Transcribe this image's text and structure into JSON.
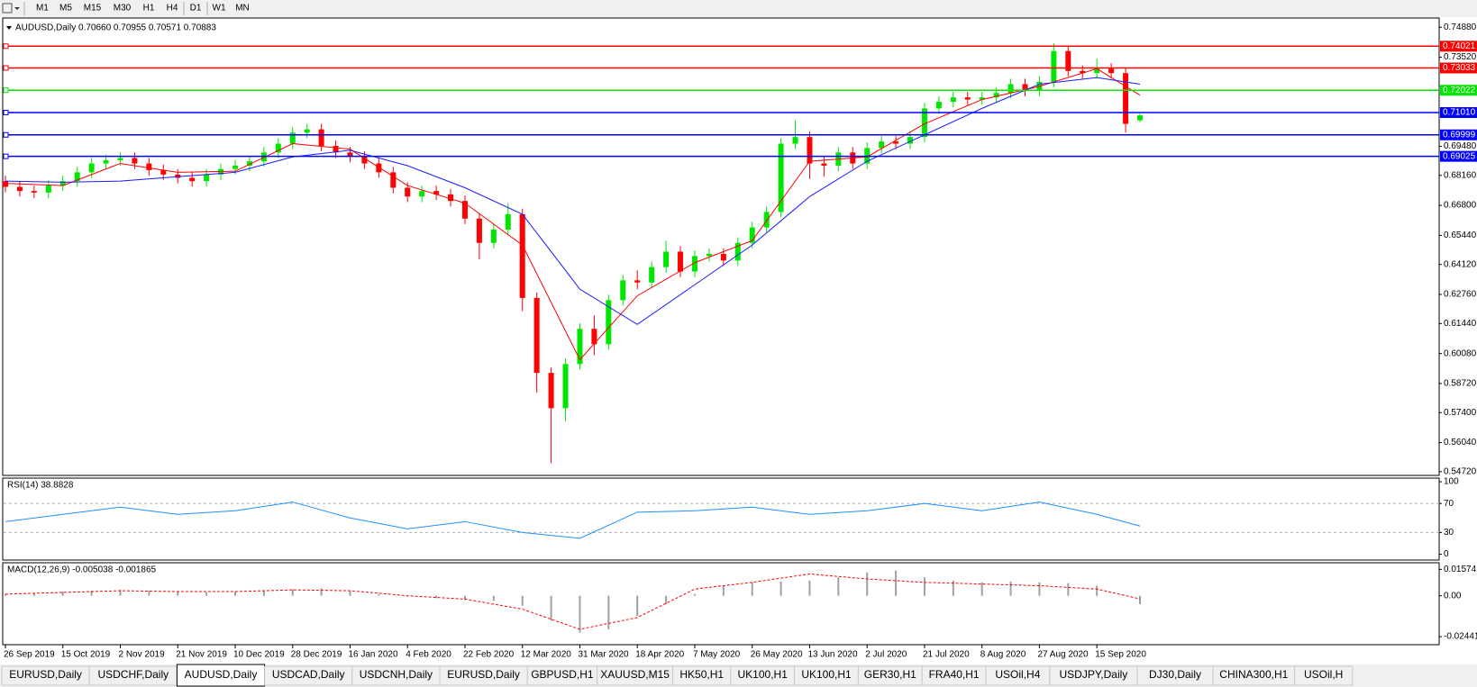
{
  "toolbar": {
    "timeframes": [
      "M1",
      "M5",
      "M15",
      "M30",
      "H1",
      "H4",
      "D1",
      "W1",
      "MN"
    ]
  },
  "chart_data": [
    {
      "type": "candlestick",
      "title": "AUDUSD,Daily  0.70660 0.70955 0.70571 0.70883",
      "up_color": "#00e600",
      "down_color": "#ff0000",
      "ylim": [
        0.5455,
        0.753
      ],
      "yticks": [
        {
          "value": 0.7488,
          "label": "0.74880"
        },
        {
          "value": 0.7352,
          "label": "0.73520"
        },
        {
          "value": 0.6948,
          "label": "0.69480"
        },
        {
          "value": 0.6816,
          "label": "0.68160"
        },
        {
          "value": 0.668,
          "label": "0.66800"
        },
        {
          "value": 0.6544,
          "label": "0.65440"
        },
        {
          "value": 0.6412,
          "label": "0.64120"
        },
        {
          "value": 0.6276,
          "label": "0.62760"
        },
        {
          "value": 0.6144,
          "label": "0.61440"
        },
        {
          "value": 0.6008,
          "label": "0.60080"
        },
        {
          "value": 0.5872,
          "label": "0.58720"
        },
        {
          "value": 0.574,
          "label": "0.57400"
        },
        {
          "value": 0.5604,
          "label": "0.56040"
        },
        {
          "value": 0.5472,
          "label": "0.54720"
        }
      ],
      "xticks": [
        {
          "value": 0,
          "label": "26 Sep 2019"
        },
        {
          "value": 4,
          "label": "15 Oct 2019"
        },
        {
          "value": 8,
          "label": "2 Nov 2019"
        },
        {
          "value": 12,
          "label": "21 Nov 2019"
        },
        {
          "value": 16,
          "label": "10 Dec 2019"
        },
        {
          "value": 20,
          "label": "28 Dec 2019"
        },
        {
          "value": 24,
          "label": "16 Jan 2020"
        },
        {
          "value": 28,
          "label": "4 Feb 2020"
        },
        {
          "value": 32,
          "label": "22 Feb 2020"
        },
        {
          "value": 36,
          "label": "12 Mar 2020"
        },
        {
          "value": 40,
          "label": "31 Mar 2020"
        },
        {
          "value": 44,
          "label": "18 Apr 2020"
        },
        {
          "value": 48,
          "label": "7 May 2020"
        },
        {
          "value": 52,
          "label": "26 May 2020"
        },
        {
          "value": 56,
          "label": "13 Jun 2020"
        },
        {
          "value": 60,
          "label": "2 Jul 2020"
        },
        {
          "value": 64,
          "label": "21 Jul 2020"
        },
        {
          "value": 68,
          "label": "8 Aug 2020"
        },
        {
          "value": 72,
          "label": "27 Aug 2020"
        },
        {
          "value": 76,
          "label": "15 Sep 2020"
        }
      ],
      "levels": [
        {
          "price": 0.74021,
          "color": "#ff0000"
        },
        {
          "price": 0.73033,
          "color": "#ff0000"
        },
        {
          "price": 0.72022,
          "color": "#00e600"
        },
        {
          "price": {
            "value": 0.7101,
            "label": "0.71010"
          },
          "color": "#0000ff"
        },
        {
          "price": 0.69999,
          "color": "#0000ff"
        },
        {
          "price": 0.69025,
          "color": "#0000ff"
        }
      ],
      "open": [
        0.679,
        0.6764,
        0.6745,
        0.6738,
        0.677,
        0.679,
        0.683,
        0.687,
        0.6885,
        0.6895,
        0.687,
        0.684,
        0.682,
        0.6805,
        0.679,
        0.682,
        0.6845,
        0.686,
        0.688,
        0.692,
        0.696,
        0.701,
        0.7025,
        0.695,
        0.692,
        0.69,
        0.687,
        0.683,
        0.676,
        0.672,
        0.6745,
        0.673,
        0.67,
        0.662,
        0.651,
        0.657,
        0.664,
        0.626,
        0.592,
        0.576,
        0.596,
        0.612,
        0.605,
        0.625,
        0.634,
        0.633,
        0.64,
        0.647,
        0.638,
        0.645,
        0.646,
        0.643,
        0.651,
        0.658,
        0.665,
        0.696,
        0.699,
        0.687,
        0.686,
        0.692,
        0.687,
        0.694,
        0.697,
        0.696,
        0.699,
        0.712,
        0.715,
        0.717,
        0.716,
        0.717,
        0.719,
        0.723,
        0.72,
        0.724,
        0.738,
        0.729,
        0.728,
        0.73,
        0.728,
        0.7066
      ],
      "high": [
        0.6815,
        0.6789,
        0.677,
        0.6795,
        0.6815,
        0.6855,
        0.6895,
        0.691,
        0.692,
        0.692,
        0.6895,
        0.6865,
        0.6845,
        0.683,
        0.6845,
        0.687,
        0.6885,
        0.6905,
        0.6945,
        0.6985,
        0.7035,
        0.705,
        0.705,
        0.6975,
        0.6945,
        0.6925,
        0.6895,
        0.6855,
        0.6785,
        0.677,
        0.677,
        0.6755,
        0.6725,
        0.6645,
        0.6595,
        0.669,
        0.6665,
        0.6285,
        0.5945,
        0.5985,
        0.6145,
        0.618,
        0.6275,
        0.6365,
        0.6385,
        0.6425,
        0.652,
        0.6495,
        0.6475,
        0.6485,
        0.6485,
        0.6535,
        0.6605,
        0.6675,
        0.6985,
        0.7065,
        0.7015,
        0.6905,
        0.6945,
        0.6945,
        0.6965,
        0.6995,
        0.6995,
        0.7015,
        0.7145,
        0.7175,
        0.7195,
        0.7195,
        0.7195,
        0.7215,
        0.7255,
        0.7255,
        0.7265,
        0.7415,
        0.7405,
        0.7315,
        0.7345,
        0.7325,
        0.7305,
        0.70955
      ],
      "low": [
        0.6739,
        0.672,
        0.6713,
        0.6713,
        0.6745,
        0.6765,
        0.6805,
        0.6845,
        0.686,
        0.6845,
        0.6815,
        0.6795,
        0.678,
        0.6765,
        0.6765,
        0.6795,
        0.682,
        0.6835,
        0.6855,
        0.6895,
        0.6935,
        0.6985,
        0.6925,
        0.6895,
        0.6875,
        0.6845,
        0.6805,
        0.6735,
        0.6695,
        0.6695,
        0.6705,
        0.6675,
        0.6595,
        0.6435,
        0.6485,
        0.6545,
        0.62,
        0.583,
        0.551,
        0.57,
        0.5935,
        0.6,
        0.6025,
        0.6225,
        0.63,
        0.6305,
        0.6375,
        0.6355,
        0.6355,
        0.6425,
        0.6405,
        0.6405,
        0.6485,
        0.6555,
        0.6625,
        0.6935,
        0.68,
        0.681,
        0.6835,
        0.6845,
        0.6845,
        0.6915,
        0.6935,
        0.6935,
        0.6965,
        0.7095,
        0.7125,
        0.7135,
        0.7135,
        0.7145,
        0.7165,
        0.7175,
        0.7175,
        0.7215,
        0.7265,
        0.7255,
        0.7255,
        0.7255,
        0.701,
        0.70571
      ],
      "close": [
        0.6764,
        0.6745,
        0.6738,
        0.677,
        0.679,
        0.683,
        0.687,
        0.6885,
        0.6895,
        0.687,
        0.684,
        0.682,
        0.6805,
        0.679,
        0.682,
        0.6845,
        0.686,
        0.688,
        0.692,
        0.696,
        0.701,
        0.7025,
        0.695,
        0.692,
        0.69,
        0.687,
        0.683,
        0.676,
        0.672,
        0.6745,
        0.673,
        0.67,
        0.662,
        0.651,
        0.657,
        0.664,
        0.626,
        0.592,
        0.576,
        0.596,
        0.612,
        0.605,
        0.625,
        0.634,
        0.633,
        0.64,
        0.647,
        0.638,
        0.645,
        0.646,
        0.643,
        0.651,
        0.658,
        0.665,
        0.696,
        0.699,
        0.687,
        0.686,
        0.692,
        0.687,
        0.694,
        0.697,
        0.696,
        0.699,
        0.712,
        0.715,
        0.717,
        0.716,
        0.717,
        0.719,
        0.723,
        0.72,
        0.724,
        0.738,
        0.729,
        0.728,
        0.73,
        0.728,
        0.705,
        0.70883
      ],
      "series": [
        {
          "color": "#ff0000",
          "x": [
            0,
            4,
            8,
            12,
            16,
            20,
            24,
            28,
            32,
            36,
            40,
            44,
            48,
            52,
            56,
            60,
            64,
            68,
            72,
            76,
            79
          ],
          "values": [
            0.678,
            0.677,
            0.687,
            0.683,
            0.6835,
            0.696,
            0.6935,
            0.677,
            0.669,
            0.65,
            0.598,
            0.627,
            0.642,
            0.652,
            0.688,
            0.69,
            0.705,
            0.716,
            0.722,
            0.73,
            0.718
          ]
        },
        {
          "color": "#1a1aff",
          "x": [
            0,
            4,
            8,
            12,
            16,
            20,
            24,
            28,
            32,
            36,
            40,
            44,
            48,
            52,
            56,
            60,
            64,
            68,
            72,
            76,
            79
          ],
          "values": [
            0.679,
            0.6785,
            0.679,
            0.681,
            0.683,
            0.69,
            0.693,
            0.686,
            0.676,
            0.664,
            0.63,
            0.614,
            0.632,
            0.65,
            0.672,
            0.688,
            0.7,
            0.712,
            0.723,
            0.726,
            0.723
          ]
        }
      ]
    },
    {
      "type": "line",
      "title": "RSI(14) 38.8828",
      "color": "#1e90ff",
      "ylim": [
        -8,
        105
      ],
      "yticks": [
        100,
        70,
        30,
        0
      ],
      "x": [
        0,
        4,
        8,
        12,
        16,
        20,
        24,
        28,
        32,
        36,
        40,
        44,
        48,
        52,
        56,
        60,
        64,
        68,
        72,
        76,
        79
      ],
      "values": [
        45,
        55,
        65,
        55,
        60,
        72,
        50,
        35,
        45,
        30,
        22,
        58,
        60,
        65,
        55,
        60,
        70,
        60,
        72,
        55,
        38.8828
      ]
    },
    {
      "type": "macd",
      "title": "MACD(12,26,9) -0.005038 -0.001865",
      "color": "#a0a0a0",
      "ylim": [
        -0.0292,
        0.0197
      ],
      "yticks": [
        0.015741,
        {
          "value": 0,
          "label": "0.00"
        },
        -0.024412
      ],
      "x": [
        0,
        2,
        4,
        6,
        8,
        10,
        12,
        14,
        16,
        18,
        20,
        22,
        24,
        26,
        28,
        30,
        32,
        34,
        36,
        38,
        40,
        42,
        44,
        46,
        48,
        50,
        52,
        54,
        56,
        58,
        60,
        62,
        64,
        66,
        68,
        70,
        72,
        74,
        76,
        79
      ],
      "values": [
        0.001,
        0.0015,
        0.0025,
        0.003,
        0.0035,
        0.003,
        0.0025,
        0.002,
        0.0025,
        0.003,
        0.004,
        0.0045,
        0.003,
        0.001,
        -0.0005,
        -0.0015,
        -0.0025,
        -0.003,
        -0.006,
        -0.015,
        -0.022,
        -0.02,
        -0.012,
        -0.005,
        0.001,
        0.006,
        0.008,
        0.0085,
        0.009,
        0.011,
        0.014,
        0.015,
        0.011,
        0.009,
        0.008,
        0.0085,
        0.008,
        0.0075,
        0.006,
        -0.005038
      ],
      "signal": {
        "color": "#ff0000",
        "x": [
          0,
          4,
          8,
          12,
          16,
          20,
          24,
          28,
          32,
          36,
          40,
          44,
          48,
          52,
          56,
          60,
          64,
          68,
          72,
          76,
          79
        ],
        "values": [
          0.001,
          0.002,
          0.003,
          0.0025,
          0.0025,
          0.0035,
          0.003,
          0.0,
          -0.002,
          -0.008,
          -0.02,
          -0.013,
          0.004,
          0.008,
          0.013,
          0.01,
          0.008,
          0.007,
          0.006,
          0.004,
          -0.001865
        ]
      }
    }
  ],
  "tabs": [
    "EURUSD,Daily",
    "USDCHF,Daily",
    "AUDUSD,Daily",
    "USDCAD,Daily",
    "USDCNH,Daily",
    "EURUSD,Daily",
    "GBPUSD,H1",
    "XAUUSD,M15",
    "HK50,H1",
    "UK100,H1",
    "UK100,H1",
    "GER30,H1",
    "FRA40,H1",
    "USOil,H4",
    "USDJPY,Daily",
    "DJ30,Daily",
    "CHINA300,H1",
    "USOil,H"
  ],
  "active_tab": 2
}
